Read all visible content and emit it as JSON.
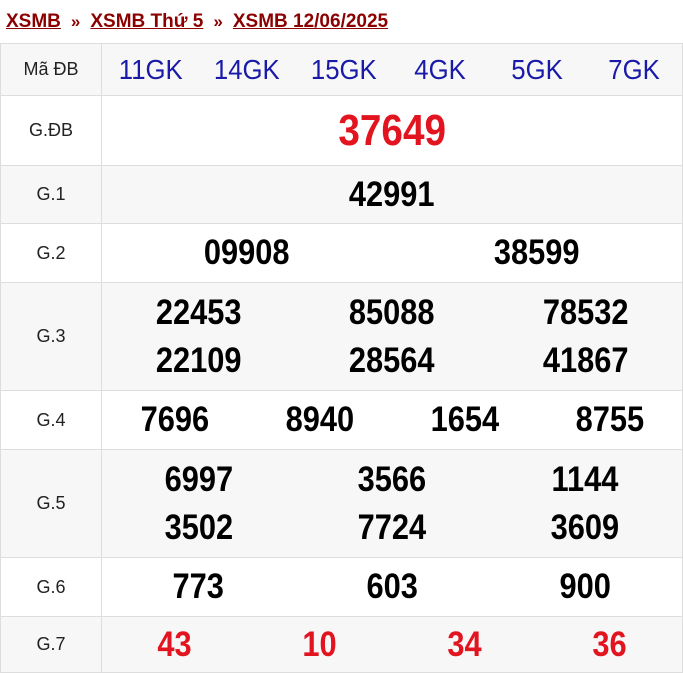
{
  "breadcrumb": [
    "XSMB",
    "XSMB Thứ 5",
    "XSMB 12/06/2025"
  ],
  "breadcrumb_separator": "»",
  "rows": [
    {
      "label": "Mã ĐB",
      "values": [
        "11GK",
        "14GK",
        "15GK",
        "4GK",
        "5GK",
        "7GK"
      ]
    },
    {
      "label": "G.ĐB",
      "values": [
        "37649"
      ]
    },
    {
      "label": "G.1",
      "values": [
        "42991"
      ]
    },
    {
      "label": "G.2",
      "values": [
        "09908",
        "38599"
      ]
    },
    {
      "label": "G.3",
      "values": [
        "22453",
        "85088",
        "78532",
        "22109",
        "28564",
        "41867"
      ]
    },
    {
      "label": "G.4",
      "values": [
        "7696",
        "8940",
        "1654",
        "8755"
      ]
    },
    {
      "label": "G.5",
      "values": [
        "6997",
        "3566",
        "1144",
        "3502",
        "7724",
        "3609"
      ]
    },
    {
      "label": "G.6",
      "values": [
        "773",
        "603",
        "900"
      ]
    },
    {
      "label": "G.7",
      "values": [
        "43",
        "10",
        "34",
        "36"
      ]
    }
  ],
  "colors": {
    "link": "#8b0000",
    "code": "#1a1aa8",
    "highlight": "#e2141f",
    "text": "#000000"
  }
}
